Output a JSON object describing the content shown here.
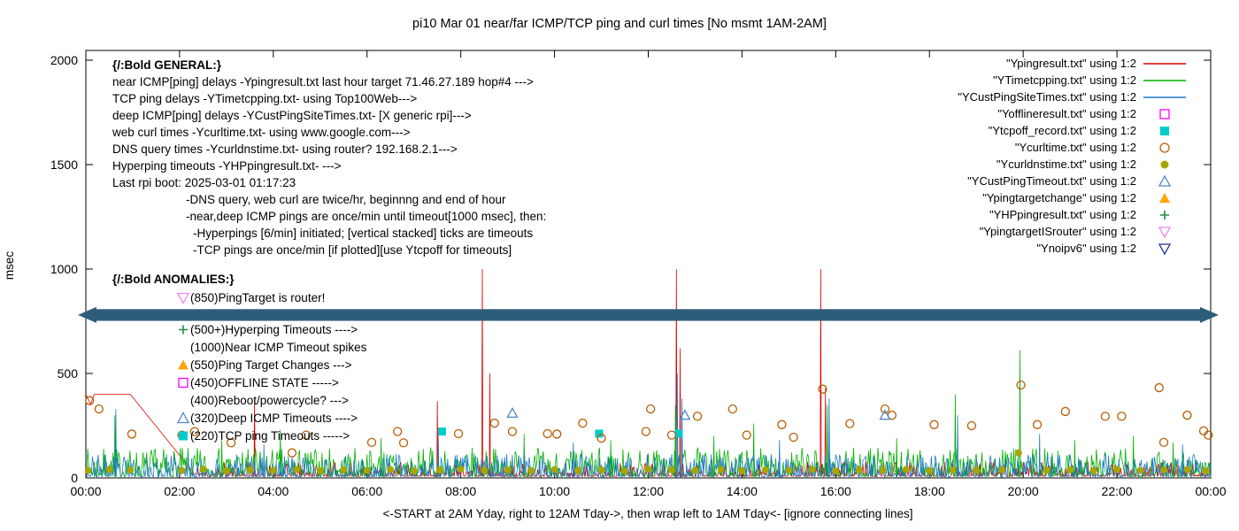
{
  "chart_data": {
    "type": "line",
    "title": "pi10 Mar 01  near/far ICMP/TCP ping and curl times [No msmt 1AM-2AM]",
    "xlabel": "<-START at 2AM Yday, right to 12AM Tday->, then wrap left to 1AM Tday<- [ignore connecting lines]",
    "ylabel": "msec",
    "ylim": [
      0,
      2000
    ],
    "yticks": [
      0,
      500,
      1000,
      1500,
      2000
    ],
    "xtick_hours": [
      0,
      2,
      4,
      6,
      8,
      10,
      12,
      14,
      16,
      18,
      20,
      22,
      24
    ],
    "xtick_labels": [
      "00:00",
      "02:00",
      "04:00",
      "06:00",
      "08:00",
      "10:00",
      "12:00",
      "14:00",
      "16:00",
      "18:00",
      "20:00",
      "22:00",
      "00:00"
    ],
    "grid": false,
    "legend_position": "top-right",
    "band": {
      "y_center_msec": 780,
      "half_height_msec": 28,
      "color": "#2e5d7a"
    },
    "line_series": [
      {
        "name": "Ypingresult.txt",
        "color": "#dd0000",
        "lead": [
          [
            0,
            400
          ],
          [
            0.1,
            352
          ],
          [
            0.18,
            400
          ],
          [
            0.95,
            400
          ],
          [
            2.3,
            25
          ]
        ],
        "noise": {
          "seed": 11,
          "base": 8,
          "amp": 70,
          "pow": 3.5,
          "step": 0.02
        },
        "spikes": [
          [
            3.6,
            380
          ],
          [
            7.5,
            368
          ],
          [
            8.46,
            1000
          ],
          [
            8.62,
            500
          ],
          [
            12.6,
            1000
          ],
          [
            12.68,
            620
          ],
          [
            15.68,
            1000
          ],
          [
            15.78,
            430
          ]
        ]
      },
      {
        "name": "YTimetcpping.txt",
        "color": "#00b000",
        "noise": {
          "seed": 7,
          "base": 6,
          "amp": 140,
          "pow": 2.2,
          "step": 0.02
        },
        "spikes": [
          [
            0.62,
            300
          ],
          [
            2.9,
            180
          ],
          [
            4.15,
            230
          ],
          [
            6.3,
            190
          ],
          [
            9.35,
            210
          ],
          [
            11.2,
            180
          ],
          [
            12.58,
            350
          ],
          [
            13.4,
            200
          ],
          [
            14.25,
            260
          ],
          [
            15.82,
            350
          ],
          [
            17.3,
            190
          ],
          [
            18.55,
            400
          ],
          [
            19.93,
            610
          ],
          [
            21.1,
            180
          ],
          [
            22.35,
            200
          ],
          [
            23.2,
            170
          ]
        ]
      },
      {
        "name": "YCustPingSiteTimes.txt",
        "color": "#1e78c8",
        "noise": {
          "seed": 23,
          "base": 5,
          "amp": 110,
          "pow": 2.6,
          "step": 0.02
        },
        "spikes": [
          [
            0.64,
            330
          ],
          [
            3.8,
            160
          ],
          [
            7.52,
            205
          ],
          [
            10.4,
            170
          ],
          [
            12.62,
            500
          ],
          [
            12.72,
            380
          ],
          [
            14.8,
            180
          ],
          [
            15.86,
            380
          ],
          [
            18.6,
            300
          ],
          [
            20.35,
            210
          ],
          [
            23.4,
            160
          ]
        ]
      }
    ],
    "scatter_series": [
      {
        "name": "Yofflineresult.txt",
        "marker": "square-open",
        "color": "#ff00ff",
        "points": []
      },
      {
        "name": "Ytcpoff_record.txt",
        "marker": "square-filled",
        "color": "#00cccc",
        "points": [
          [
            7.6,
            222
          ],
          [
            10.95,
            212
          ],
          [
            12.65,
            212
          ]
        ]
      },
      {
        "name": "Ycurltime.txt",
        "marker": "circle-open",
        "color": "#b85c00",
        "points": [
          [
            0.08,
            370
          ],
          [
            0.28,
            330
          ],
          [
            0.98,
            210
          ],
          [
            2.05,
            205
          ],
          [
            2.32,
            222
          ],
          [
            3.1,
            168
          ],
          [
            4.4,
            120
          ],
          [
            4.7,
            205
          ],
          [
            6.1,
            170
          ],
          [
            6.65,
            222
          ],
          [
            6.78,
            168
          ],
          [
            7.95,
            212
          ],
          [
            8.72,
            262
          ],
          [
            9.1,
            222
          ],
          [
            9.85,
            212
          ],
          [
            10.05,
            210
          ],
          [
            10.6,
            262
          ],
          [
            11.0,
            190
          ],
          [
            11.95,
            222
          ],
          [
            12.05,
            330
          ],
          [
            12.5,
            205
          ],
          [
            13.05,
            295
          ],
          [
            13.8,
            330
          ],
          [
            14.1,
            205
          ],
          [
            14.85,
            255
          ],
          [
            15.1,
            195
          ],
          [
            15.72,
            425
          ],
          [
            16.3,
            260
          ],
          [
            17.05,
            330
          ],
          [
            17.2,
            300
          ],
          [
            18.1,
            255
          ],
          [
            18.9,
            250
          ],
          [
            19.95,
            445
          ],
          [
            20.3,
            255
          ],
          [
            20.9,
            318
          ],
          [
            21.75,
            295
          ],
          [
            22.1,
            295
          ],
          [
            22.9,
            432
          ],
          [
            23.0,
            170
          ],
          [
            23.5,
            300
          ],
          [
            23.85,
            225
          ],
          [
            23.95,
            205
          ]
        ]
      },
      {
        "name": "Ycurldnstime.txt",
        "marker": "circle-filled",
        "color": "#a6a600",
        "points": [
          [
            0.05,
            36
          ],
          [
            0.5,
            40
          ],
          [
            0.95,
            38
          ],
          [
            2.05,
            36
          ],
          [
            2.5,
            42
          ],
          [
            3.0,
            34
          ],
          [
            3.5,
            38
          ],
          [
            4.0,
            36
          ],
          [
            4.5,
            40
          ],
          [
            5.0,
            34
          ],
          [
            5.5,
            38
          ],
          [
            6.0,
            36
          ],
          [
            6.5,
            40
          ],
          [
            7.0,
            34
          ],
          [
            7.55,
            38
          ],
          [
            8.0,
            42
          ],
          [
            8.5,
            36
          ],
          [
            9.0,
            38
          ],
          [
            9.5,
            34
          ],
          [
            10.0,
            40
          ],
          [
            10.5,
            36
          ],
          [
            11.0,
            38
          ],
          [
            11.5,
            34
          ],
          [
            12.0,
            42
          ],
          [
            12.5,
            38
          ],
          [
            13.0,
            36
          ],
          [
            13.55,
            40
          ],
          [
            14.0,
            34
          ],
          [
            14.5,
            38
          ],
          [
            15.0,
            36
          ],
          [
            15.5,
            40
          ],
          [
            16.0,
            34
          ],
          [
            16.5,
            38
          ],
          [
            17.0,
            36
          ],
          [
            17.5,
            40
          ],
          [
            18.0,
            34
          ],
          [
            18.5,
            38
          ],
          [
            19.0,
            36
          ],
          [
            19.55,
            40
          ],
          [
            19.9,
            120
          ],
          [
            20.5,
            36
          ],
          [
            21.0,
            38
          ],
          [
            21.5,
            34
          ],
          [
            22.0,
            40
          ],
          [
            22.5,
            36
          ],
          [
            23.0,
            38
          ],
          [
            23.5,
            40
          ],
          [
            23.9,
            34
          ]
        ]
      },
      {
        "name": "YCustPingTimeout.txt",
        "marker": "triangle-open",
        "color": "#4f86c6",
        "points": [
          [
            9.1,
            310
          ],
          [
            12.78,
            300
          ],
          [
            17.05,
            300
          ]
        ]
      },
      {
        "name": "Ypingtargetchange",
        "marker": "triangle-filled",
        "color": "#ffa500",
        "points": []
      },
      {
        "name": "YHPpingresult.txt",
        "marker": "plus",
        "color": "#1e8c46",
        "points": []
      },
      {
        "name": "YpingtargetISrouter",
        "marker": "tri-down-open",
        "color": "#ee82ee",
        "points": []
      },
      {
        "name": "Ynoipv6",
        "marker": "tri-down-open",
        "color": "#1c2f8c",
        "points": []
      }
    ],
    "legend": [
      {
        "label": "\"Ypingresult.txt\" using 1:2",
        "sample": "line",
        "color": "#dd0000"
      },
      {
        "label": "\"YTimetcpping.txt\" using 1:2",
        "sample": "line",
        "color": "#00b000"
      },
      {
        "label": "\"YCustPingSiteTimes.txt\" using 1:2",
        "sample": "line",
        "color": "#1e78c8"
      },
      {
        "label": "\"Yofflineresult.txt\" using 1:2",
        "sample": "square-open",
        "color": "#ff00ff"
      },
      {
        "label": "\"Ytcpoff_record.txt\" using 1:2",
        "sample": "square-filled",
        "color": "#00cccc"
      },
      {
        "label": "\"Ycurltime.txt\" using 1:2",
        "sample": "circle-open",
        "color": "#b85c00"
      },
      {
        "label": "\"Ycurldnstime.txt\" using 1:2",
        "sample": "circle-filled",
        "color": "#a6a600"
      },
      {
        "label": "\"YCustPingTimeout.txt\" using 1:2",
        "sample": "triangle-open",
        "color": "#4f86c6"
      },
      {
        "label": "\"Ypingtargetchange\" using 1:2",
        "sample": "triangle-filled",
        "color": "#ffa500"
      },
      {
        "label": "\"YHPpingresult.txt\" using 1:2",
        "sample": "plus",
        "color": "#1e8c46"
      },
      {
        "label": "\"YpingtargetISrouter\" using 1:2",
        "sample": "tri-down-open",
        "color": "#ee82ee"
      },
      {
        "label": "\"Ynoipv6\" using 1:2",
        "sample": "tri-down-open",
        "color": "#1c2f8c"
      }
    ],
    "annotations": {
      "general": [
        {
          "text": "{/:Bold GENERAL:}",
          "bold": true,
          "indent": 0
        },
        {
          "text": "near ICMP[ping] delays -Ypingresult.txt last hour target 71.46.27.189 hop#4 --->",
          "indent": 0
        },
        {
          "text": "TCP ping delays -YTimetcpping.txt- using Top100Web--->",
          "indent": 0
        },
        {
          "text": "deep ICMP[ping] delays -YCustPingSiteTimes.txt- [X generic rpi]--->",
          "indent": 0
        },
        {
          "text": "web curl times -Ycurltime.txt- using www.google.com--->",
          "indent": 0
        },
        {
          "text": "DNS query times -Ycurldnstime.txt- using router? 192.168.2.1--->",
          "indent": 0
        },
        {
          "text": "Hyperping timeouts -YHPpingresult.txt- --->",
          "indent": 0
        },
        {
          "text": "Last rpi boot: 2025-03-01 01:17:23",
          "indent": 0
        },
        {
          "text": "-DNS query, web curl are twice/hr, beginnng and end of hour",
          "indent": 1
        },
        {
          "text": "-near,deep ICMP pings are once/min until timeout[1000 msec], then:",
          "indent": 1
        },
        {
          "text": "-Hyperpings [6/min] initiated; [vertical stacked] ticks are timeouts",
          "indent": 2
        },
        {
          "text": "-TCP pings are once/min [if plotted][use Ytcpoff for timeouts]",
          "indent": 2
        }
      ],
      "anomalies": {
        "header": "{/:Bold ANOMALIES:}",
        "items": [
          {
            "marker": "tri-down-open",
            "color": "#ee82ee",
            "text": "(850)PingTarget is router!"
          },
          {
            "marker": "plus",
            "color": "#1e8c46",
            "text": "(500+)Hyperping Timeouts ---->"
          },
          {
            "marker": null,
            "color": null,
            "text": "(1000)Near ICMP Timeout spikes"
          },
          {
            "marker": "triangle-filled",
            "color": "#ffa500",
            "text": "(550)Ping Target Changes --->"
          },
          {
            "marker": "square-open",
            "color": "#ff00ff",
            "text": "(450)OFFLINE STATE ----->"
          },
          {
            "marker": null,
            "color": null,
            "text": "(400)Reboot/powercycle? --->"
          },
          {
            "marker": "triangle-open",
            "color": "#4f86c6",
            "text": "(320)Deep ICMP Timeouts ---->"
          },
          {
            "marker": "square-filled",
            "color": "#00cccc",
            "text": "(220)TCP ping Timeouts ----->"
          }
        ]
      }
    }
  }
}
